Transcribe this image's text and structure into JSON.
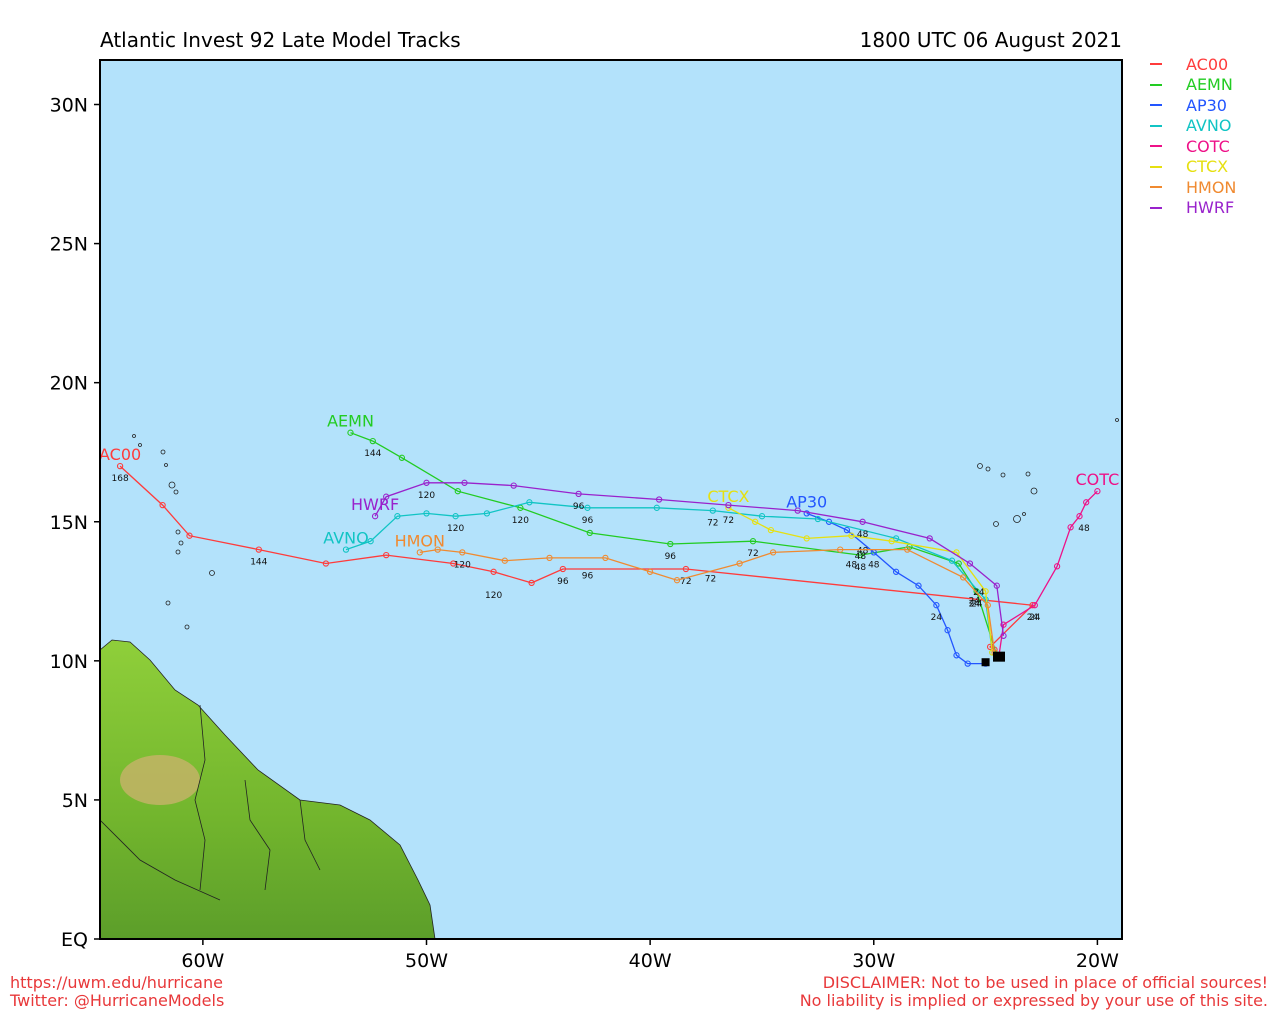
{
  "header": {
    "title": "Atlantic Invest 92 Late Model Tracks",
    "datetime": "1800 UTC 06 August 2021"
  },
  "footer": {
    "url": "https://uwm.edu/hurricane",
    "twitter": "Twitter: @HurricaneModels",
    "disclaimer_line1": "DISCLAIMER: Not to be used in place of official sources!",
    "disclaimer_line2": "No liability is implied or expressed by your use of this site."
  },
  "colors": {
    "ocean": "#b3e2fb",
    "land": "#8dc63f"
  },
  "axes": {
    "lat_labels": [
      "EQ",
      "5N",
      "10N",
      "15N",
      "20N",
      "25N",
      "30N"
    ],
    "lon_labels": [
      "60W",
      "50W",
      "40W",
      "30W",
      "20W"
    ],
    "lat_range": [
      0,
      31.6
    ],
    "lon_range": [
      -64.6,
      -18.9
    ]
  },
  "chart_data": {
    "type": "map",
    "series": [
      {
        "name": "AC00",
        "color": "#ff3b3b",
        "points": [
          [
            -24.5,
            10.2
          ],
          [
            -24.6,
            10.4
          ],
          [
            -24.8,
            10.5
          ],
          [
            -22.9,
            12.0
          ],
          [
            -38.4,
            13.3
          ],
          [
            -43.9,
            13.3
          ],
          [
            -45.3,
            12.8
          ],
          [
            -47.0,
            13.2
          ],
          [
            -48.8,
            13.5
          ],
          [
            -51.8,
            13.8
          ],
          [
            -54.5,
            13.5
          ],
          [
            -57.5,
            14.0
          ],
          [
            -60.6,
            14.5
          ],
          [
            -61.8,
            15.6
          ],
          [
            -63.7,
            17.0
          ]
        ],
        "labels": [
          {
            "t": "24",
            "lon": -22.9,
            "lat": 12.0
          },
          {
            "t": "72",
            "lon": -38.4,
            "lat": 13.3
          },
          {
            "t": "96",
            "lon": -43.9,
            "lat": 13.3
          },
          {
            "t": "120",
            "lon": -47.0,
            "lat": 12.8
          },
          {
            "t": "144",
            "lon": -57.5,
            "lat": 14.0
          },
          {
            "t": "168",
            "lon": -63.7,
            "lat": 17.0
          }
        ],
        "end_label": "AC00"
      },
      {
        "name": "AEMN",
        "color": "#22cc22",
        "points": [
          [
            -24.5,
            10.2
          ],
          [
            -25.4,
            12.5
          ],
          [
            -26.2,
            13.5
          ],
          [
            -28.4,
            14.1
          ],
          [
            -30.6,
            13.8
          ],
          [
            -35.4,
            14.3
          ],
          [
            -39.1,
            14.2
          ],
          [
            -42.7,
            14.6
          ],
          [
            -45.8,
            15.5
          ],
          [
            -48.6,
            16.1
          ],
          [
            -51.1,
            17.3
          ],
          [
            -52.4,
            17.9
          ],
          [
            -53.4,
            18.2
          ]
        ],
        "labels": [
          {
            "t": "24",
            "lon": -25.4,
            "lat": 12.5
          },
          {
            "t": "48",
            "lon": -30.6,
            "lat": 13.8
          },
          {
            "t": "72",
            "lon": -35.4,
            "lat": 14.3
          },
          {
            "t": "96",
            "lon": -39.1,
            "lat": 14.2
          },
          {
            "t": "120",
            "lon": -45.8,
            "lat": 15.5
          },
          {
            "t": "144",
            "lon": -52.4,
            "lat": 17.9
          }
        ],
        "end_label": "AEMN"
      },
      {
        "name": "AP30",
        "color": "#2255ff",
        "points": [
          [
            -25.0,
            9.9
          ],
          [
            -25.8,
            9.9
          ],
          [
            -26.3,
            10.2
          ],
          [
            -26.7,
            11.1
          ],
          [
            -27.2,
            12.0
          ],
          [
            -28.0,
            12.7
          ],
          [
            -29.0,
            13.2
          ],
          [
            -30.0,
            13.9
          ],
          [
            -31.2,
            14.7
          ],
          [
            -32.0,
            15.0
          ],
          [
            -33.0,
            15.3
          ]
        ],
        "labels": [
          {
            "t": "24",
            "lon": -27.2,
            "lat": 12.0
          },
          {
            "t": "48",
            "lon": -30.0,
            "lat": 13.9
          }
        ],
        "end_label": "AP30"
      },
      {
        "name": "AVNO",
        "color": "#11c4c4",
        "points": [
          [
            -24.7,
            10.3
          ],
          [
            -25.0,
            12.2
          ],
          [
            -26.5,
            13.6
          ],
          [
            -29.0,
            14.4
          ],
          [
            -32.5,
            15.1
          ],
          [
            -35.0,
            15.2
          ],
          [
            -37.2,
            15.4
          ],
          [
            -39.7,
            15.5
          ],
          [
            -42.8,
            15.5
          ],
          [
            -45.4,
            15.7
          ],
          [
            -47.3,
            15.3
          ],
          [
            -48.7,
            15.2
          ],
          [
            -50.0,
            15.3
          ],
          [
            -51.3,
            15.2
          ],
          [
            -52.5,
            14.3
          ],
          [
            -53.6,
            14.0
          ]
        ],
        "labels": [
          {
            "t": "24",
            "lon": -25.5,
            "lat": 12.6
          },
          {
            "t": "48",
            "lon": -30.5,
            "lat": 14.4
          },
          {
            "t": "72",
            "lon": -37.2,
            "lat": 15.4
          },
          {
            "t": "96",
            "lon": -42.8,
            "lat": 15.5
          },
          {
            "t": "120",
            "lon": -48.7,
            "lat": 15.2
          }
        ],
        "end_label": "AVNO"
      },
      {
        "name": "COTC",
        "color": "#ee1188",
        "points": [
          [
            -24.4,
            10.2
          ],
          [
            -24.2,
            11.3
          ],
          [
            -22.8,
            12.0
          ],
          [
            -21.8,
            13.4
          ],
          [
            -21.2,
            14.8
          ],
          [
            -20.8,
            15.2
          ],
          [
            -20.5,
            15.7
          ],
          [
            -20.0,
            16.1
          ]
        ],
        "labels": [
          {
            "t": "24",
            "lon": -22.8,
            "lat": 12.0
          },
          {
            "t": "48",
            "lon": -20.6,
            "lat": 15.2
          }
        ],
        "end_label": "COTC"
      },
      {
        "name": "CTCX",
        "color": "#e6e010",
        "points": [
          [
            -24.7,
            10.3
          ],
          [
            -25.0,
            12.5
          ],
          [
            -26.3,
            13.9
          ],
          [
            -29.2,
            14.3
          ],
          [
            -31.0,
            14.5
          ],
          [
            -33.0,
            14.4
          ],
          [
            -34.6,
            14.7
          ],
          [
            -35.3,
            15.0
          ],
          [
            -36.5,
            15.5
          ]
        ],
        "labels": [
          {
            "t": "24",
            "lon": -25.3,
            "lat": 12.9
          },
          {
            "t": "48",
            "lon": -30.6,
            "lat": 14.2
          },
          {
            "t": "72",
            "lon": -36.5,
            "lat": 15.5
          }
        ],
        "end_label": "CTCX"
      },
      {
        "name": "HMON",
        "color": "#f08a30",
        "points": [
          [
            -24.6,
            10.3
          ],
          [
            -24.9,
            12.0
          ],
          [
            -26.0,
            13.0
          ],
          [
            -28.5,
            14.0
          ],
          [
            -31.5,
            14.0
          ],
          [
            -34.5,
            13.9
          ],
          [
            -36.0,
            13.5
          ],
          [
            -38.8,
            12.9
          ],
          [
            -40.0,
            13.2
          ],
          [
            -42.0,
            13.7
          ],
          [
            -44.5,
            13.7
          ],
          [
            -46.5,
            13.6
          ],
          [
            -48.4,
            13.9
          ],
          [
            -49.5,
            14.0
          ],
          [
            -50.3,
            13.9
          ]
        ],
        "labels": [
          {
            "t": "24",
            "lon": -25.5,
            "lat": 12.5
          },
          {
            "t": "48",
            "lon": -31.0,
            "lat": 13.9
          },
          {
            "t": "72",
            "lon": -37.3,
            "lat": 13.4
          },
          {
            "t": "96",
            "lon": -42.8,
            "lat": 13.5
          },
          {
            "t": "120",
            "lon": -48.4,
            "lat": 13.9
          }
        ],
        "end_label": "HMON"
      },
      {
        "name": "HWRF",
        "color": "#9922cc",
        "points": [
          [
            -24.2,
            10.9
          ],
          [
            -24.5,
            12.7
          ],
          [
            -25.7,
            13.5
          ],
          [
            -27.5,
            14.4
          ],
          [
            -30.5,
            15.0
          ],
          [
            -33.4,
            15.4
          ],
          [
            -36.5,
            15.6
          ],
          [
            -39.6,
            15.8
          ],
          [
            -43.2,
            16.0
          ],
          [
            -46.1,
            16.3
          ],
          [
            -48.3,
            16.4
          ],
          [
            -50.0,
            16.4
          ],
          [
            -51.8,
            15.9
          ],
          [
            -52.3,
            15.2
          ]
        ],
        "labels": [
          {
            "t": "48",
            "lon": -30.5,
            "lat": 15.0
          },
          {
            "t": "96",
            "lon": -43.2,
            "lat": 16.0
          },
          {
            "t": "120",
            "lon": -50.0,
            "lat": 16.4
          }
        ],
        "end_label": "HWRF"
      }
    ]
  }
}
